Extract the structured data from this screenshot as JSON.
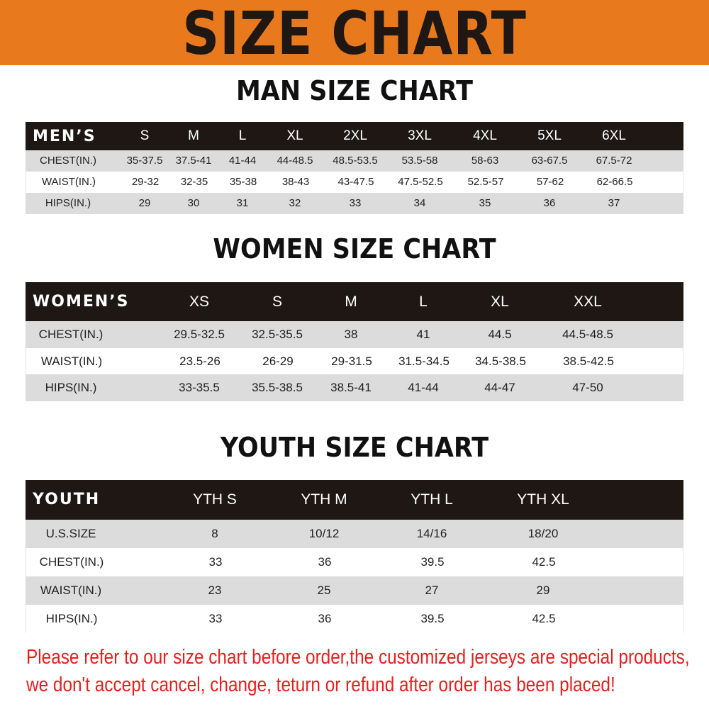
{
  "banner": {
    "title": "SIZE CHART",
    "color": "#E8791C"
  },
  "men": {
    "title": "MAN SIZE CHART",
    "header_label": "MEN’S",
    "sizes": [
      "S",
      "M",
      "L",
      "XL",
      "2XL",
      "3XL",
      "4XL",
      "5XL",
      "6XL"
    ],
    "rows": [
      {
        "label": "CHEST(IN.)",
        "values": [
          "35-37.5",
          "37.5-41",
          "41-44",
          "44-48.5",
          "48.5-53.5",
          "53.5-58",
          "58-63",
          "63-67.5",
          "67.5-72"
        ]
      },
      {
        "label": "WAIST(IN.)",
        "values": [
          "29-32",
          "32-35",
          "35-38",
          "38-43",
          "43-47.5",
          "47.5-52.5",
          "52.5-57",
          "57-62",
          "62-66.5"
        ]
      },
      {
        "label": "HIPS(IN.)",
        "values": [
          "29",
          "30",
          "31",
          "32",
          "33",
          "34",
          "35",
          "36",
          "37"
        ]
      }
    ]
  },
  "women": {
    "title": "WOMEN SIZE CHART",
    "header_label": "WOMEN’S",
    "sizes": [
      "XS",
      "S",
      "M",
      "L",
      "XL",
      "XXL"
    ],
    "rows": [
      {
        "label": "CHEST(IN.)",
        "values": [
          "29.5-32.5",
          "32.5-35.5",
          "38",
          "41",
          "44.5",
          "44.5-48.5"
        ]
      },
      {
        "label": "WAIST(IN.)",
        "values": [
          "23.5-26",
          "26-29",
          "29-31.5",
          "31.5-34.5",
          "34.5-38.5",
          "38.5-42.5"
        ]
      },
      {
        "label": "HIPS(IN.)",
        "values": [
          "33-35.5",
          "35.5-38.5",
          "38.5-41",
          "41-44",
          "44-47",
          "47-50"
        ]
      }
    ]
  },
  "youth": {
    "title": "YOUTH SIZE CHART",
    "header_label": "YOUTH",
    "sizes": [
      "YTH S",
      "YTH M",
      "YTH L",
      "YTH XL"
    ],
    "rows": [
      {
        "label": "U.S.SIZE",
        "values": [
          "8",
          "10/12",
          "14/16",
          "18/20"
        ]
      },
      {
        "label": "CHEST(IN.)",
        "values": [
          "33",
          "36",
          "39.5",
          "42.5"
        ]
      },
      {
        "label": "WAIST(IN.)",
        "values": [
          "23",
          "25",
          "27",
          "29"
        ]
      },
      {
        "label": "HIPS(IN.)",
        "values": [
          "33",
          "36",
          "39.5",
          "42.5"
        ]
      }
    ]
  },
  "notice": {
    "line1": "Please refer to our size chart before order,the customized jerseys are special products,",
    "line2": "we don't accept cancel, change, teturn or refund after order has been placed!",
    "color": "#E61E1E"
  }
}
